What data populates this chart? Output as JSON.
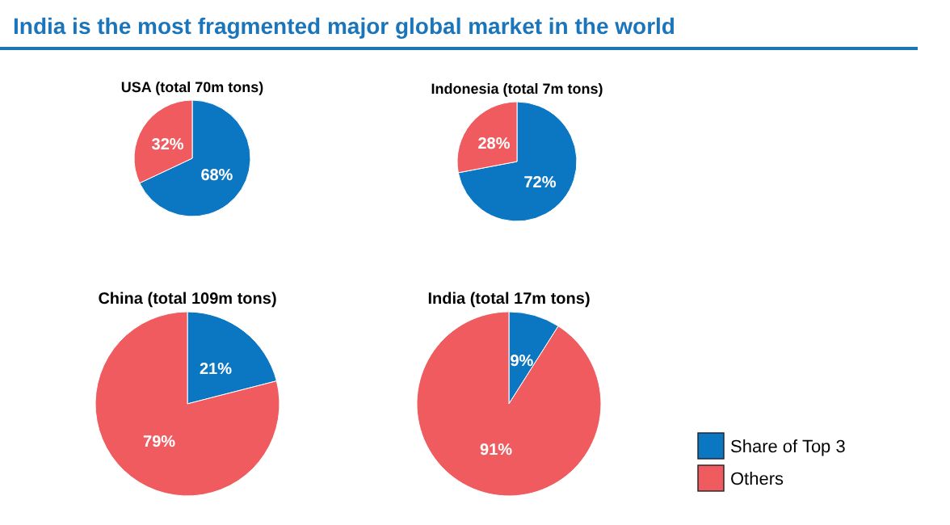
{
  "chart_data": [
    {
      "type": "other",
      "title": "India is the most fragmented major global market in the world"
    },
    {
      "type": "pie",
      "title": "USA (total 70m tons)",
      "categories": [
        null,
        null
      ],
      "values": [
        68,
        32
      ],
      "colors": [
        "#0b76c2",
        "#ef5b5e"
      ],
      "value_labels": [
        "68%",
        "32%"
      ],
      "legend": false
    },
    {
      "type": "pie",
      "title": "Indonesia (total 7m tons)",
      "categories": [
        null,
        null
      ],
      "values": [
        72,
        28
      ],
      "colors": [
        "#0b76c2",
        "#ef5b5e"
      ],
      "value_labels": [
        "72%",
        "28%"
      ],
      "legend": false
    },
    {
      "type": "pie",
      "title": "China (total 109m tons)",
      "categories": [
        null,
        null
      ],
      "values": [
        21,
        79
      ],
      "colors": [
        "#0b76c2",
        "#ef5b5e"
      ],
      "value_labels": [
        "21%",
        "79%"
      ],
      "legend": false
    },
    {
      "type": "pie",
      "title": "India (total 17m tons)",
      "categories": [
        "Share of Top 3",
        "Others"
      ],
      "values": [
        9,
        91
      ],
      "colors": [
        "#0b76c2",
        "#ef5b5e"
      ],
      "value_labels": [
        "9%",
        "91%"
      ],
      "legend": "bottom right"
    }
  ]
}
